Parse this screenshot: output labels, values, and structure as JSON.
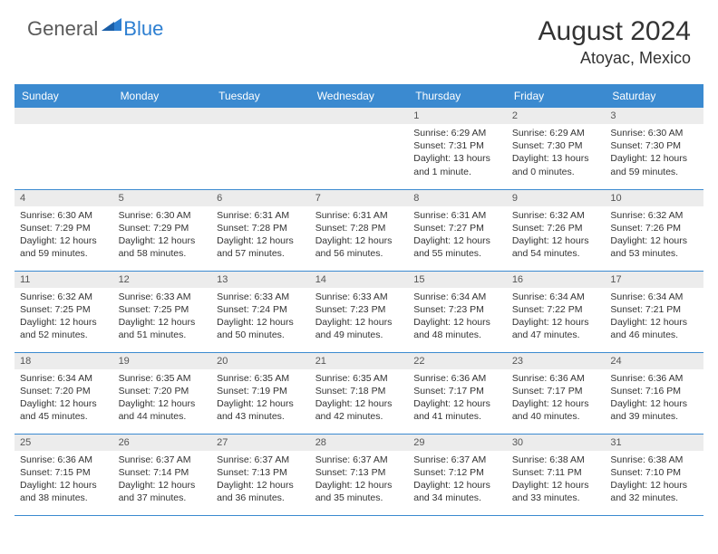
{
  "brand": {
    "first": "General",
    "second": "Blue"
  },
  "title": "August 2024",
  "location": "Atoyac, Mexico",
  "colors": {
    "header_bg": "#3b8ad0",
    "header_text": "#ffffff",
    "daynum_bg": "#ececec",
    "border": "#3b8ad0",
    "text": "#333333",
    "brand_gray": "#5a5a5a",
    "brand_blue": "#2d7fd1"
  },
  "dayHeaders": [
    "Sunday",
    "Monday",
    "Tuesday",
    "Wednesday",
    "Thursday",
    "Friday",
    "Saturday"
  ],
  "weeks": [
    [
      null,
      null,
      null,
      null,
      {
        "n": "1",
        "sr": "6:29 AM",
        "ss": "7:31 PM",
        "dl": "13 hours and 1 minute."
      },
      {
        "n": "2",
        "sr": "6:29 AM",
        "ss": "7:30 PM",
        "dl": "13 hours and 0 minutes."
      },
      {
        "n": "3",
        "sr": "6:30 AM",
        "ss": "7:30 PM",
        "dl": "12 hours and 59 minutes."
      }
    ],
    [
      {
        "n": "4",
        "sr": "6:30 AM",
        "ss": "7:29 PM",
        "dl": "12 hours and 59 minutes."
      },
      {
        "n": "5",
        "sr": "6:30 AM",
        "ss": "7:29 PM",
        "dl": "12 hours and 58 minutes."
      },
      {
        "n": "6",
        "sr": "6:31 AM",
        "ss": "7:28 PM",
        "dl": "12 hours and 57 minutes."
      },
      {
        "n": "7",
        "sr": "6:31 AM",
        "ss": "7:28 PM",
        "dl": "12 hours and 56 minutes."
      },
      {
        "n": "8",
        "sr": "6:31 AM",
        "ss": "7:27 PM",
        "dl": "12 hours and 55 minutes."
      },
      {
        "n": "9",
        "sr": "6:32 AM",
        "ss": "7:26 PM",
        "dl": "12 hours and 54 minutes."
      },
      {
        "n": "10",
        "sr": "6:32 AM",
        "ss": "7:26 PM",
        "dl": "12 hours and 53 minutes."
      }
    ],
    [
      {
        "n": "11",
        "sr": "6:32 AM",
        "ss": "7:25 PM",
        "dl": "12 hours and 52 minutes."
      },
      {
        "n": "12",
        "sr": "6:33 AM",
        "ss": "7:25 PM",
        "dl": "12 hours and 51 minutes."
      },
      {
        "n": "13",
        "sr": "6:33 AM",
        "ss": "7:24 PM",
        "dl": "12 hours and 50 minutes."
      },
      {
        "n": "14",
        "sr": "6:33 AM",
        "ss": "7:23 PM",
        "dl": "12 hours and 49 minutes."
      },
      {
        "n": "15",
        "sr": "6:34 AM",
        "ss": "7:23 PM",
        "dl": "12 hours and 48 minutes."
      },
      {
        "n": "16",
        "sr": "6:34 AM",
        "ss": "7:22 PM",
        "dl": "12 hours and 47 minutes."
      },
      {
        "n": "17",
        "sr": "6:34 AM",
        "ss": "7:21 PM",
        "dl": "12 hours and 46 minutes."
      }
    ],
    [
      {
        "n": "18",
        "sr": "6:34 AM",
        "ss": "7:20 PM",
        "dl": "12 hours and 45 minutes."
      },
      {
        "n": "19",
        "sr": "6:35 AM",
        "ss": "7:20 PM",
        "dl": "12 hours and 44 minutes."
      },
      {
        "n": "20",
        "sr": "6:35 AM",
        "ss": "7:19 PM",
        "dl": "12 hours and 43 minutes."
      },
      {
        "n": "21",
        "sr": "6:35 AM",
        "ss": "7:18 PM",
        "dl": "12 hours and 42 minutes."
      },
      {
        "n": "22",
        "sr": "6:36 AM",
        "ss": "7:17 PM",
        "dl": "12 hours and 41 minutes."
      },
      {
        "n": "23",
        "sr": "6:36 AM",
        "ss": "7:17 PM",
        "dl": "12 hours and 40 minutes."
      },
      {
        "n": "24",
        "sr": "6:36 AM",
        "ss": "7:16 PM",
        "dl": "12 hours and 39 minutes."
      }
    ],
    [
      {
        "n": "25",
        "sr": "6:36 AM",
        "ss": "7:15 PM",
        "dl": "12 hours and 38 minutes."
      },
      {
        "n": "26",
        "sr": "6:37 AM",
        "ss": "7:14 PM",
        "dl": "12 hours and 37 minutes."
      },
      {
        "n": "27",
        "sr": "6:37 AM",
        "ss": "7:13 PM",
        "dl": "12 hours and 36 minutes."
      },
      {
        "n": "28",
        "sr": "6:37 AM",
        "ss": "7:13 PM",
        "dl": "12 hours and 35 minutes."
      },
      {
        "n": "29",
        "sr": "6:37 AM",
        "ss": "7:12 PM",
        "dl": "12 hours and 34 minutes."
      },
      {
        "n": "30",
        "sr": "6:38 AM",
        "ss": "7:11 PM",
        "dl": "12 hours and 33 minutes."
      },
      {
        "n": "31",
        "sr": "6:38 AM",
        "ss": "7:10 PM",
        "dl": "12 hours and 32 minutes."
      }
    ]
  ],
  "labels": {
    "sunrise": "Sunrise:",
    "sunset": "Sunset:",
    "daylight": "Daylight:"
  }
}
